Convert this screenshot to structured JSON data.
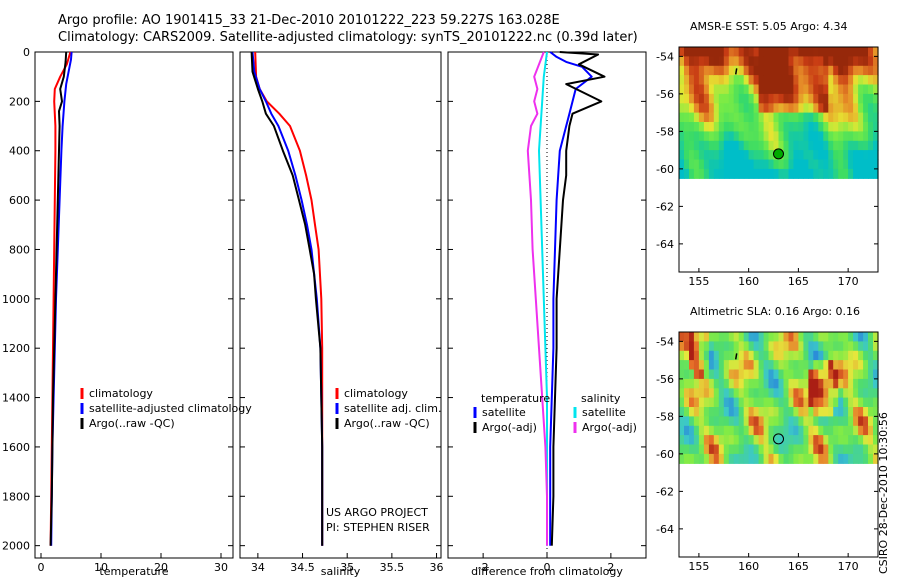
{
  "header": {
    "line1": "Argo profile: AO 1901415_33 21-Dec-2010 20101222_223 59.227S 163.028E",
    "line2": "Climatology: CARS2009. Satellite-adjusted climatology: synTS_20101222.nc (0.39d later)"
  },
  "side_note": "CSIRO 28-Dec-2010 10:30:56",
  "project": {
    "line1": "US ARGO PROJECT",
    "line2": "PI: STEPHEN RISER"
  },
  "colors": {
    "climatology": "#ff0000",
    "satellite": "#0000ff",
    "argo": "#000000",
    "cyan": "#00e5ee",
    "magenta": "#ee30ee",
    "marker": "#00aa00"
  },
  "chart_data": [
    {
      "id": "temperature",
      "type": "line",
      "xlabel": "temperature",
      "ylabel": "",
      "xlim": [
        -1,
        32
      ],
      "ylim": [
        2050,
        0
      ],
      "xticks": [
        0,
        10,
        20,
        30
      ],
      "yticks": [
        0,
        200,
        400,
        600,
        800,
        1000,
        1200,
        1400,
        1600,
        1800,
        2000
      ],
      "legend": {
        "placement": "lower-middle",
        "entries": [
          "climatology",
          "satellite-adjusted climatology",
          "Argo(..raw -QC)"
        ]
      },
      "series": [
        {
          "name": "climatology",
          "color": "#ff0000",
          "points": [
            [
              4.9,
              0
            ],
            [
              4.3,
              50
            ],
            [
              3.2,
              100
            ],
            [
              2.3,
              150
            ],
            [
              2.2,
              200
            ],
            [
              2.3,
              250
            ],
            [
              2.4,
              300
            ],
            [
              2.4,
              400
            ],
            [
              2.3,
              600
            ],
            [
              2.2,
              800
            ],
            [
              2.1,
              1000
            ],
            [
              2.0,
              1200
            ],
            [
              1.9,
              1400
            ],
            [
              1.8,
              1600
            ],
            [
              1.7,
              1800
            ],
            [
              1.6,
              2000
            ]
          ]
        },
        {
          "name": "satellite-adjusted climatology",
          "color": "#0000ff",
          "points": [
            [
              5.1,
              0
            ],
            [
              5.0,
              30
            ],
            [
              4.6,
              80
            ],
            [
              4.2,
              130
            ],
            [
              3.9,
              200
            ],
            [
              3.6,
              300
            ],
            [
              3.4,
              400
            ],
            [
              3.1,
              600
            ],
            [
              2.8,
              800
            ],
            [
              2.5,
              1000
            ],
            [
              2.3,
              1200
            ],
            [
              2.1,
              1400
            ],
            [
              1.9,
              1600
            ],
            [
              1.8,
              1800
            ],
            [
              1.7,
              2000
            ]
          ]
        },
        {
          "name": "Argo(..raw -QC)",
          "color": "#000000",
          "points": [
            [
              4.2,
              0
            ],
            [
              4.1,
              40
            ],
            [
              3.8,
              100
            ],
            [
              3.2,
              150
            ],
            [
              3.5,
              200
            ],
            [
              3.0,
              240
            ],
            [
              3.1,
              300
            ],
            [
              3.0,
              400
            ],
            [
              2.8,
              600
            ],
            [
              2.6,
              800
            ],
            [
              2.4,
              1000
            ],
            [
              2.2,
              1200
            ],
            [
              2.0,
              1400
            ],
            [
              1.9,
              1600
            ],
            [
              1.8,
              1800
            ],
            [
              1.6,
              2000
            ]
          ]
        }
      ]
    },
    {
      "id": "salinity",
      "type": "line",
      "xlabel": "salinity",
      "ylabel": "",
      "xlim": [
        33.8,
        36.05
      ],
      "ylim": [
        2050,
        0
      ],
      "xticks": [
        34,
        34.5,
        35,
        35.5,
        36
      ],
      "xticklabels": [
        "34",
        "34.5",
        "35",
        "35.5",
        "36"
      ],
      "legend": {
        "placement": "lower-right",
        "entries": [
          "climatology",
          "satellite adj. clim.",
          "Argo(..raw -QC)"
        ]
      },
      "series": [
        {
          "name": "climatology",
          "color": "#ff0000",
          "points": [
            [
              33.97,
              0
            ],
            [
              33.98,
              100
            ],
            [
              34.02,
              150
            ],
            [
              34.1,
              200
            ],
            [
              34.24,
              250
            ],
            [
              34.36,
              300
            ],
            [
              34.47,
              400
            ],
            [
              34.54,
              500
            ],
            [
              34.6,
              600
            ],
            [
              34.64,
              700
            ],
            [
              34.68,
              800
            ],
            [
              34.71,
              1000
            ],
            [
              34.72,
              1200
            ],
            [
              34.72,
              1400
            ],
            [
              34.72,
              1600
            ],
            [
              34.72,
              1800
            ],
            [
              34.72,
              2000
            ]
          ]
        },
        {
          "name": "satellite adj. clim.",
          "color": "#0000ff",
          "points": [
            [
              33.94,
              0
            ],
            [
              33.96,
              80
            ],
            [
              34.02,
              150
            ],
            [
              34.09,
              200
            ],
            [
              34.15,
              250
            ],
            [
              34.23,
              300
            ],
            [
              34.34,
              400
            ],
            [
              34.42,
              500
            ],
            [
              34.49,
              600
            ],
            [
              34.55,
              700
            ],
            [
              34.6,
              800
            ],
            [
              34.66,
              1000
            ],
            [
              34.7,
              1200
            ],
            [
              34.71,
              1400
            ],
            [
              34.72,
              1600
            ],
            [
              34.72,
              1800
            ],
            [
              34.72,
              2000
            ]
          ]
        },
        {
          "name": "Argo(..raw -QC)",
          "color": "#000000",
          "points": [
            [
              33.93,
              0
            ],
            [
              33.94,
              80
            ],
            [
              34.0,
              150
            ],
            [
              34.05,
              200
            ],
            [
              34.09,
              250
            ],
            [
              34.18,
              300
            ],
            [
              34.28,
              400
            ],
            [
              34.39,
              500
            ],
            [
              34.46,
              600
            ],
            [
              34.53,
              700
            ],
            [
              34.58,
              800
            ],
            [
              34.63,
              900
            ],
            [
              34.65,
              1000
            ],
            [
              34.7,
              1200
            ],
            [
              34.71,
              1400
            ],
            [
              34.72,
              1600
            ],
            [
              34.72,
              1800
            ],
            [
              34.72,
              2000
            ]
          ]
        }
      ]
    },
    {
      "id": "difference",
      "type": "line",
      "xlabel": "difference from climatology",
      "ylabel": "",
      "xlim": [
        -3.1,
        3.1
      ],
      "ylim": [
        2050,
        0
      ],
      "xticks": [
        -2,
        0,
        2
      ],
      "legend": {
        "placement": "lower-middle",
        "columns": [
          "temperature",
          "salinity"
        ],
        "entries": [
          "satellite",
          "Argo(-adj)",
          "satellite",
          "Argo(-adj)"
        ]
      },
      "series": [
        {
          "name": "temperature satellite",
          "color": "#0000ff",
          "points": [
            [
              0.1,
              0
            ],
            [
              0.3,
              20
            ],
            [
              0.6,
              40
            ],
            [
              1.1,
              60
            ],
            [
              1.4,
              100
            ],
            [
              0.9,
              150
            ],
            [
              0.7,
              250
            ],
            [
              0.4,
              400
            ],
            [
              0.3,
              600
            ],
            [
              0.25,
              800
            ],
            [
              0.2,
              1000
            ],
            [
              0.2,
              1200
            ],
            [
              0.15,
              1400
            ],
            [
              0.1,
              1600
            ],
            [
              0.1,
              1800
            ],
            [
              0.1,
              2000
            ]
          ]
        },
        {
          "name": "temperature Argo(-adj)",
          "color": "#000000",
          "points": [
            [
              0.4,
              0
            ],
            [
              1.6,
              10
            ],
            [
              1.0,
              50
            ],
            [
              1.8,
              100
            ],
            [
              0.6,
              130
            ],
            [
              1.7,
              200
            ],
            [
              0.8,
              250
            ],
            [
              0.7,
              300
            ],
            [
              0.6,
              400
            ],
            [
              0.6,
              500
            ],
            [
              0.5,
              600
            ],
            [
              0.45,
              700
            ],
            [
              0.4,
              800
            ],
            [
              0.35,
              900
            ],
            [
              0.3,
              1000
            ],
            [
              0.3,
              1200
            ],
            [
              0.25,
              1400
            ],
            [
              0.2,
              1600
            ],
            [
              0.2,
              1800
            ],
            [
              0.15,
              2000
            ]
          ]
        },
        {
          "name": "salinity satellite",
          "color": "#00e5ee",
          "points": [
            [
              0.0,
              0
            ],
            [
              -0.1,
              100
            ],
            [
              -0.15,
              200
            ],
            [
              -0.2,
              300
            ],
            [
              -0.25,
              400
            ],
            [
              -0.2,
              600
            ],
            [
              -0.15,
              800
            ],
            [
              -0.1,
              1000
            ],
            [
              -0.05,
              1200
            ],
            [
              0.0,
              1400
            ],
            [
              0.0,
              1600
            ],
            [
              0.0,
              1800
            ],
            [
              0.0,
              2000
            ]
          ]
        },
        {
          "name": "salinity Argo(-adj)",
          "color": "#ee30ee",
          "points": [
            [
              -0.1,
              0
            ],
            [
              -0.4,
              100
            ],
            [
              -0.3,
              150
            ],
            [
              -0.4,
              200
            ],
            [
              -0.3,
              250
            ],
            [
              -0.5,
              300
            ],
            [
              -0.6,
              400
            ],
            [
              -0.55,
              500
            ],
            [
              -0.5,
              600
            ],
            [
              -0.45,
              800
            ],
            [
              -0.35,
              1000
            ],
            [
              -0.25,
              1200
            ],
            [
              -0.15,
              1400
            ],
            [
              -0.05,
              1600
            ],
            [
              0.0,
              1800
            ],
            [
              0.0,
              2000
            ]
          ]
        }
      ]
    },
    {
      "id": "sst-map",
      "type": "heatmap",
      "title": "AMSR-E SST: 5.05 Argo: 4.34",
      "xlim": [
        153,
        173
      ],
      "ylim": [
        -65.5,
        -53.5
      ],
      "xticks": [
        155,
        160,
        165,
        170
      ],
      "yticks": [
        -54,
        -56,
        -58,
        -60,
        -62,
        -64
      ],
      "data_ylim": [
        -60.1,
        -53.5
      ],
      "argo_position": [
        163.0,
        -59.2
      ],
      "track_position": [
        158.8,
        -54.8
      ]
    },
    {
      "id": "sla-map",
      "type": "heatmap",
      "title": "Altimetric SLA: 0.16 Argo: 0.16",
      "xlim": [
        153,
        173
      ],
      "ylim": [
        -65.5,
        -53.5
      ],
      "xticks": [
        155,
        160,
        165,
        170
      ],
      "yticks": [
        -54,
        -56,
        -58,
        -60,
        -62,
        -64
      ],
      "data_ylim": [
        -60.1,
        -53.5
      ],
      "argo_position": [
        163.0,
        -59.2
      ],
      "track_position": [
        158.8,
        -54.8
      ]
    }
  ]
}
